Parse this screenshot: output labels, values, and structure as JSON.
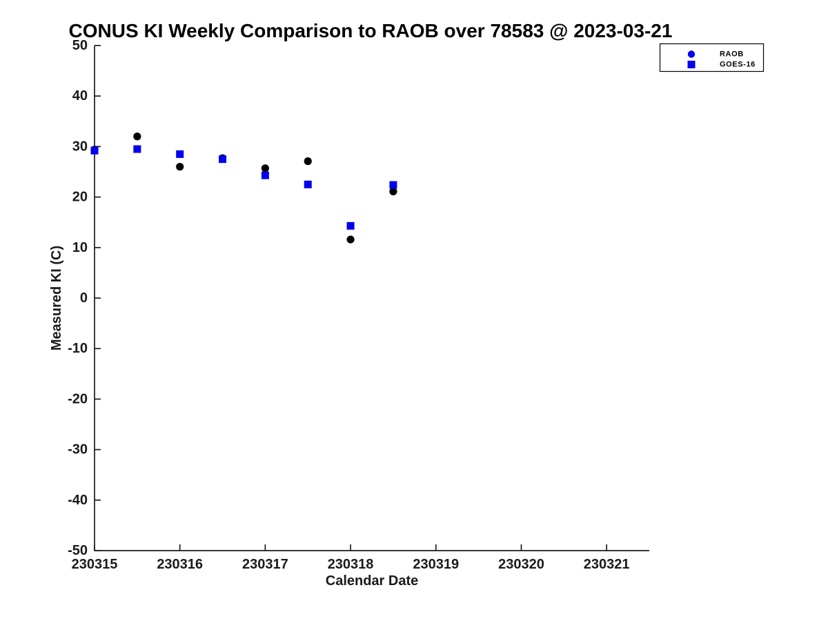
{
  "page": {
    "background_color": "#FFFFFF"
  },
  "chart_data": {
    "type": "scatter",
    "title": "CONUS KI Weekly Comparison to RAOB over 78583 @ 2023-03-21",
    "xlabel": "Calendar Date",
    "ylabel": "Measured KI (C)",
    "xlim": [
      230315,
      230321.5
    ],
    "ylim": [
      -50,
      50
    ],
    "grid": false,
    "axis_color": "#1a1a1a",
    "x_ticks": [
      {
        "value": 230315,
        "label": "230315"
      },
      {
        "value": 230316,
        "label": "230316"
      },
      {
        "value": 230317,
        "label": "230317"
      },
      {
        "value": 230318,
        "label": "230318"
      },
      {
        "value": 230319,
        "label": "230319"
      },
      {
        "value": 230320,
        "label": "230320"
      },
      {
        "value": 230321,
        "label": "230321"
      }
    ],
    "y_ticks": [
      {
        "value": 50,
        "label": "50"
      },
      {
        "value": 40,
        "label": "40"
      },
      {
        "value": 30,
        "label": "30"
      },
      {
        "value": 20,
        "label": "20"
      },
      {
        "value": 10,
        "label": "10"
      },
      {
        "value": 0,
        "label": "0"
      },
      {
        "value": -10,
        "label": "-10"
      },
      {
        "value": -20,
        "label": "-20"
      },
      {
        "value": -30,
        "label": "-30"
      },
      {
        "value": -40,
        "label": "-40"
      },
      {
        "value": -50,
        "label": "-50"
      }
    ],
    "legend": {
      "position": "top-right-outside",
      "border_color": "#000000",
      "background": "#FFFFFF",
      "entries": [
        {
          "label": "RAOB",
          "marker": "circle",
          "marker_color": "#0000EE"
        },
        {
          "label": "GOES-16",
          "marker": "square",
          "marker_color": "#0000EE"
        }
      ]
    },
    "series": [
      {
        "name": "RAOB",
        "marker": "circle",
        "color": "#000000",
        "points": [
          [
            230315.0,
            29.4
          ],
          [
            230315.5,
            32.0
          ],
          [
            230316.0,
            26.0
          ],
          [
            230316.5,
            27.7
          ],
          [
            230317.0,
            25.7
          ],
          [
            230317.5,
            27.1
          ],
          [
            230318.0,
            11.6
          ],
          [
            230318.5,
            21.1
          ]
        ]
      },
      {
        "name": "GOES-16",
        "marker": "square",
        "color": "#0000EE",
        "points": [
          [
            230315.0,
            29.2
          ],
          [
            230315.5,
            29.5
          ],
          [
            230316.0,
            28.5
          ],
          [
            230316.5,
            27.5
          ],
          [
            230317.0,
            24.3
          ],
          [
            230317.5,
            22.5
          ],
          [
            230318.0,
            14.3
          ],
          [
            230318.5,
            22.4
          ]
        ]
      }
    ]
  }
}
